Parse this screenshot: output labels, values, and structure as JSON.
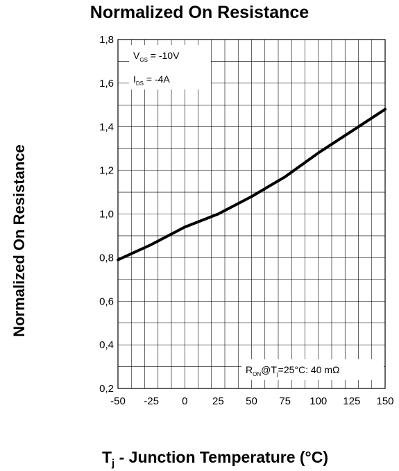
{
  "chart_data": {
    "type": "line",
    "title": "Normalized On Resistance",
    "xlabel": "T_j - Junction Temperature (°C)",
    "xlabel_parts": {
      "main": "T",
      "sub": "j",
      "rest": " - Junction Temperature (°C)"
    },
    "ylabel": "Normalized On Resistance",
    "xlim": [
      -50,
      150
    ],
    "ylim": [
      0.2,
      1.8
    ],
    "x_ticks": [
      -50,
      -25,
      0,
      25,
      50,
      75,
      100,
      125,
      150
    ],
    "y_ticks": [
      0.2,
      0.4,
      0.6,
      0.8,
      1.0,
      1.2,
      1.4,
      1.6,
      1.8
    ],
    "x_tick_labels": [
      "-50",
      "-25",
      "0",
      "25",
      "50",
      "75",
      "100",
      "125",
      "150"
    ],
    "y_tick_labels": [
      "0,2",
      "0,4",
      "0,6",
      "0,8",
      "1,0",
      "1,2",
      "1,4",
      "1,6",
      "1,8"
    ],
    "grid": true,
    "series": [
      {
        "x": [
          -50,
          -25,
          0,
          25,
          50,
          75,
          100,
          125,
          150
        ],
        "values": [
          0.79,
          0.86,
          0.94,
          1.0,
          1.08,
          1.17,
          1.28,
          1.38,
          1.48
        ]
      }
    ],
    "annotations": {
      "vgs": {
        "main": "V",
        "sub": "GS",
        "rest": " = -10V"
      },
      "ids": {
        "main": "I",
        "sub": "DS",
        "rest": " = -4A"
      },
      "ron": {
        "main": "R",
        "sub": "ON",
        "mid": "@T",
        "sub2": "j",
        "rest": "=25°C: 40 mΩ"
      }
    },
    "colors": {
      "line": "#000000",
      "grid": "#000000",
      "background": "#ffffff"
    }
  }
}
